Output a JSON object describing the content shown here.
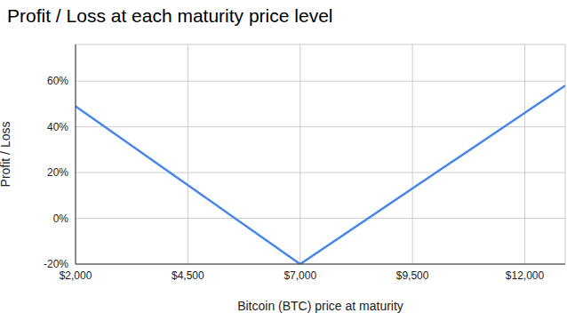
{
  "chart_data": {
    "type": "line",
    "title": "Profit / Loss at each maturity price level",
    "x_label": "Bitcoin (BTC) price at maturity",
    "y_label": "Profit / Loss",
    "x": [
      2000,
      7000,
      12900
    ],
    "series": [
      {
        "name": "Profit / Loss",
        "color": "#4a86e8",
        "values": [
          49,
          -20,
          58
        ]
      }
    ],
    "xlim": [
      2000,
      12900
    ],
    "xticks": [
      {
        "value": 2000,
        "label": "$2,000"
      },
      {
        "value": 4500,
        "label": "$4,500"
      },
      {
        "value": 7000,
        "label": "$7,000"
      },
      {
        "value": 9500,
        "label": "$9,500"
      },
      {
        "value": 12000,
        "label": "$12,000"
      }
    ],
    "ylim": [
      -20,
      76
    ],
    "yticks": [
      {
        "value": -20,
        "label": "-20%"
      },
      {
        "value": 0,
        "label": "0%"
      },
      {
        "value": 20,
        "label": "20%"
      },
      {
        "value": 40,
        "label": "40%"
      },
      {
        "value": 60,
        "label": "60%"
      }
    ],
    "grid": true
  }
}
